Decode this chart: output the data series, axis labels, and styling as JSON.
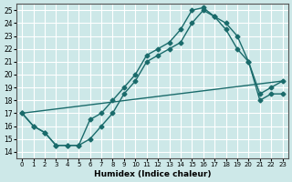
{
  "xlabel": "Humidex (Indice chaleur)",
  "ylabel": "",
  "xlim": [
    -0.5,
    23.5
  ],
  "ylim": [
    13.5,
    25.5
  ],
  "xticks": [
    0,
    1,
    2,
    3,
    4,
    5,
    6,
    7,
    8,
    9,
    10,
    11,
    12,
    13,
    14,
    15,
    16,
    17,
    18,
    19,
    20,
    21,
    22,
    23
  ],
  "yticks": [
    14,
    15,
    16,
    17,
    18,
    19,
    20,
    21,
    22,
    23,
    24,
    25
  ],
  "background_color": "#cde8e8",
  "grid_color": "#ffffff",
  "line_color": "#1a6b6b",
  "lines": [
    {
      "x": [
        0,
        1,
        2,
        3,
        4,
        5,
        6,
        7,
        8,
        9,
        10,
        11,
        12,
        13,
        14,
        15,
        16,
        17,
        18,
        19,
        20,
        21,
        22,
        23
      ],
      "y": [
        17,
        16,
        15.5,
        14.5,
        14.5,
        14.5,
        16.5,
        17,
        18,
        19,
        20,
        21.5,
        22,
        22.5,
        23.5,
        25,
        25.2,
        24.5,
        24,
        23,
        21,
        18.5,
        19,
        19.5
      ],
      "has_markers": true
    },
    {
      "x": [
        0,
        1,
        2,
        3,
        4,
        5,
        6,
        7,
        8,
        9,
        10,
        11,
        12,
        13,
        14,
        15,
        16,
        17,
        18,
        19,
        20,
        21,
        22,
        23
      ],
      "y": [
        17,
        16,
        15.5,
        14.5,
        14.5,
        14.5,
        15,
        16,
        17,
        18.5,
        19.5,
        21,
        21.5,
        22,
        22.5,
        24,
        25,
        24.5,
        23.5,
        22,
        21,
        18,
        18.5,
        18.5
      ],
      "has_markers": true
    },
    {
      "x": [
        0,
        23
      ],
      "y": [
        17,
        19.5
      ],
      "has_markers": false
    }
  ]
}
